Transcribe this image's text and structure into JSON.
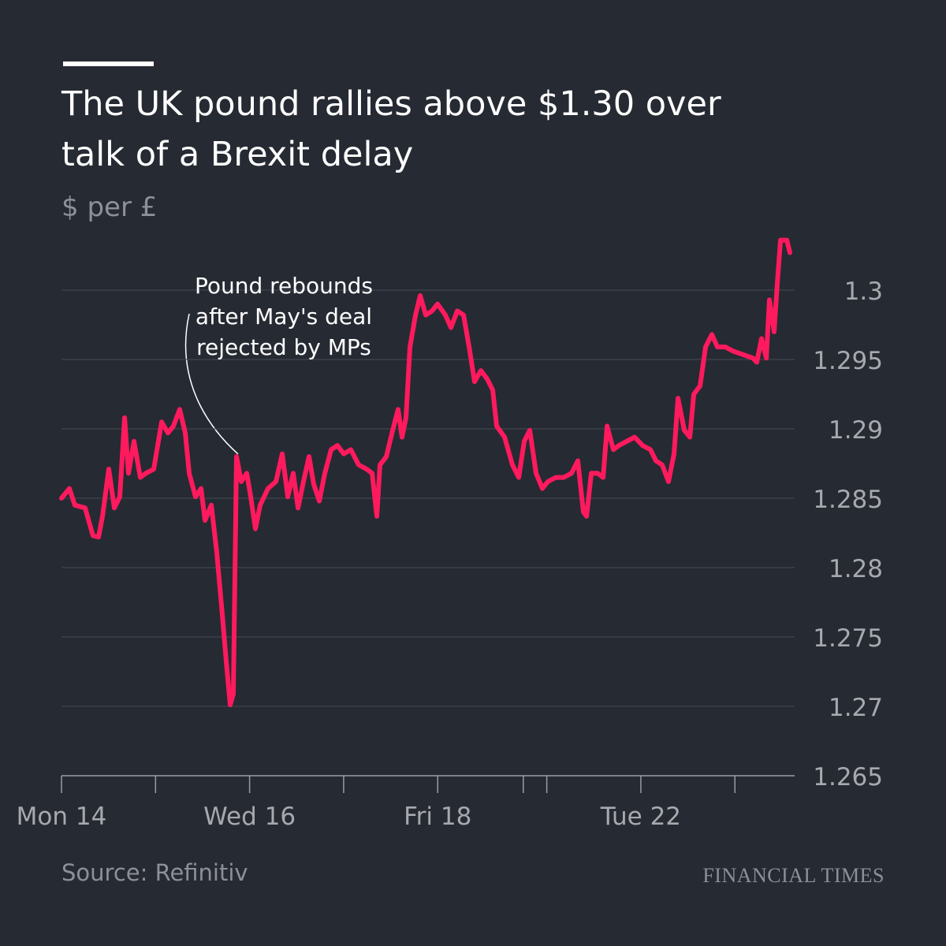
{
  "chart_data": {
    "type": "line",
    "title": "The UK pound rallies above $1.30 over talk of a Brexit delay",
    "subtitle": "$ per £",
    "source": "Source: Refinitiv",
    "brand": "FINANCIAL TIMES",
    "annotation": [
      "Pound rebounds",
      "after May's deal",
      "rejected by MPs"
    ],
    "color": "#ff1a5e",
    "grid": true,
    "xlim": [
      0,
      7.77
    ],
    "ylim": [
      1.265,
      1.304
    ],
    "yticks": [
      1.265,
      1.27,
      1.275,
      1.28,
      1.285,
      1.29,
      1.295,
      1.3
    ],
    "xticks": [
      {
        "value": 0,
        "label": "Mon 14"
      },
      {
        "value": 1,
        "label": null
      },
      {
        "value": 2,
        "label": "Wed 16"
      },
      {
        "value": 3,
        "label": null
      },
      {
        "value": 4,
        "label": "Fri 18"
      },
      {
        "value": 4.91,
        "label": null
      },
      {
        "value": 5.16,
        "label": null
      },
      {
        "value": 6.16,
        "label": "Tue 22"
      },
      {
        "value": 7.16,
        "label": null
      }
    ],
    "x": [
      0.0,
      0.084,
      0.142,
      0.251,
      0.335,
      0.394,
      0.436,
      0.503,
      0.562,
      0.62,
      0.671,
      0.712,
      0.771,
      0.838,
      0.897,
      0.981,
      1.065,
      1.132,
      1.19,
      1.257,
      1.316,
      1.358,
      1.425,
      1.484,
      1.526,
      1.593,
      1.651,
      1.71,
      1.752,
      1.794,
      1.827,
      1.861,
      1.911,
      1.97,
      2.012,
      2.062,
      2.112,
      2.196,
      2.28,
      2.347,
      2.406,
      2.464,
      2.515,
      2.573,
      2.632,
      2.682,
      2.741,
      2.8,
      2.867,
      2.934,
      3.001,
      3.076,
      3.16,
      3.244,
      3.303,
      3.353,
      3.386,
      3.454,
      3.521,
      3.579,
      3.621,
      3.663,
      3.705,
      3.764,
      3.814,
      3.873,
      3.94,
      3.998,
      4.082,
      4.141,
      4.208,
      4.275,
      4.334,
      4.392,
      4.459,
      4.526,
      4.585,
      4.627,
      4.711,
      4.795,
      4.862,
      4.92,
      4.979,
      5.046,
      5.113,
      5.172,
      5.256,
      5.34,
      5.423,
      5.49,
      5.549,
      5.583,
      5.633,
      5.7,
      5.759,
      5.801,
      5.868,
      5.926,
      6.01,
      6.094,
      6.178,
      6.262,
      6.32,
      6.387,
      6.454,
      6.513,
      6.555,
      6.622,
      6.681,
      6.723,
      6.79,
      6.848,
      6.915,
      6.974,
      7.058,
      7.142,
      7.267,
      7.351,
      7.393,
      7.443,
      7.494,
      7.527,
      7.577,
      7.611,
      7.645,
      7.712,
      7.745
    ],
    "values": [
      1.285,
      1.2857,
      1.2845,
      1.2843,
      1.2823,
      1.2822,
      1.2837,
      1.2871,
      1.2843,
      1.2851,
      1.2908,
      1.2868,
      1.2891,
      1.2865,
      1.2868,
      1.2871,
      1.2905,
      1.2897,
      1.2902,
      1.2914,
      1.2897,
      1.2868,
      1.2851,
      1.2857,
      1.2834,
      1.2845,
      1.2811,
      1.2766,
      1.2732,
      1.2701,
      1.2709,
      1.288,
      1.2862,
      1.2868,
      1.2851,
      1.2828,
      1.2845,
      1.2857,
      1.2862,
      1.2882,
      1.2851,
      1.2868,
      1.2843,
      1.2862,
      1.288,
      1.286,
      1.2848,
      1.2868,
      1.2885,
      1.2888,
      1.2882,
      1.2885,
      1.2874,
      1.2871,
      1.2868,
      1.2837,
      1.2874,
      1.288,
      1.2899,
      1.2914,
      1.2894,
      1.2908,
      1.2959,
      1.2982,
      1.2996,
      1.2982,
      1.2985,
      1.299,
      1.2982,
      1.2973,
      1.2985,
      1.2982,
      1.2959,
      1.2934,
      1.2942,
      1.2936,
      1.2928,
      1.2902,
      1.2894,
      1.2874,
      1.2865,
      1.2891,
      1.2899,
      1.2868,
      1.2857,
      1.2862,
      1.2865,
      1.2865,
      1.2868,
      1.2877,
      1.284,
      1.2837,
      1.2868,
      1.2868,
      1.2865,
      1.2902,
      1.2885,
      1.2888,
      1.2891,
      1.2894,
      1.2888,
      1.2885,
      1.2877,
      1.2874,
      1.2862,
      1.2882,
      1.2922,
      1.2899,
      1.2894,
      1.2925,
      1.2931,
      1.2959,
      1.2968,
      1.2959,
      1.2959,
      1.2956,
      1.2953,
      1.2951,
      1.2948,
      1.2965,
      1.2951,
      1.2993,
      1.297,
      1.3005,
      1.3036,
      1.3036,
      1.3027
    ]
  }
}
